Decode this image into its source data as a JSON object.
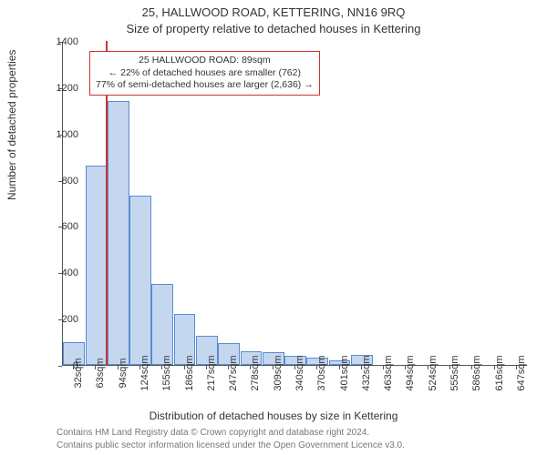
{
  "title_main": "25, HALLWOOD ROAD, KETTERING, NN16 9RQ",
  "title_sub": "Size of property relative to detached houses in Kettering",
  "y_axis_label": "Number of detached properties",
  "x_axis_label": "Distribution of detached houses by size in Kettering",
  "chart": {
    "type": "histogram",
    "background_color": "#ffffff",
    "bar_fill_color": "rgba(90,140,210,0.35)",
    "bar_border_color": "#5a8cd2",
    "axis_color": "#555555",
    "text_color": "#333333",
    "marker_line_color": "#cc3333",
    "annotation_border_color": "#cc3333",
    "ylim": [
      0,
      1400
    ],
    "ytick_step": 200,
    "y_ticks": [
      0,
      200,
      400,
      600,
      800,
      1000,
      1200,
      1400
    ],
    "x_tick_labels": [
      "32sqm",
      "63sqm",
      "94sqm",
      "124sqm",
      "155sqm",
      "186sqm",
      "217sqm",
      "247sqm",
      "278sqm",
      "309sqm",
      "340sqm",
      "370sqm",
      "401sqm",
      "432sqm",
      "463sqm",
      "494sqm",
      "524sqm",
      "555sqm",
      "586sqm",
      "616sqm",
      "647sqm"
    ],
    "values": [
      100,
      860,
      1140,
      730,
      350,
      220,
      125,
      95,
      60,
      55,
      40,
      30,
      20,
      45,
      0,
      0,
      0,
      0,
      0,
      0,
      0
    ],
    "marker_value_sqm": 89,
    "x_range_sqm": [
      32,
      647
    ],
    "label_fontsize": 12,
    "tick_fontsize": 11,
    "title_fontsize": 13
  },
  "annotation": {
    "line1": "25 HALLWOOD ROAD: 89sqm",
    "line2": "← 22% of detached houses are smaller (762)",
    "line3": "77% of semi-detached houses are larger (2,636) →"
  },
  "footer_line1": "Contains HM Land Registry data © Crown copyright and database right 2024.",
  "footer_line2": "Contains public sector information licensed under the Open Government Licence v3.0."
}
